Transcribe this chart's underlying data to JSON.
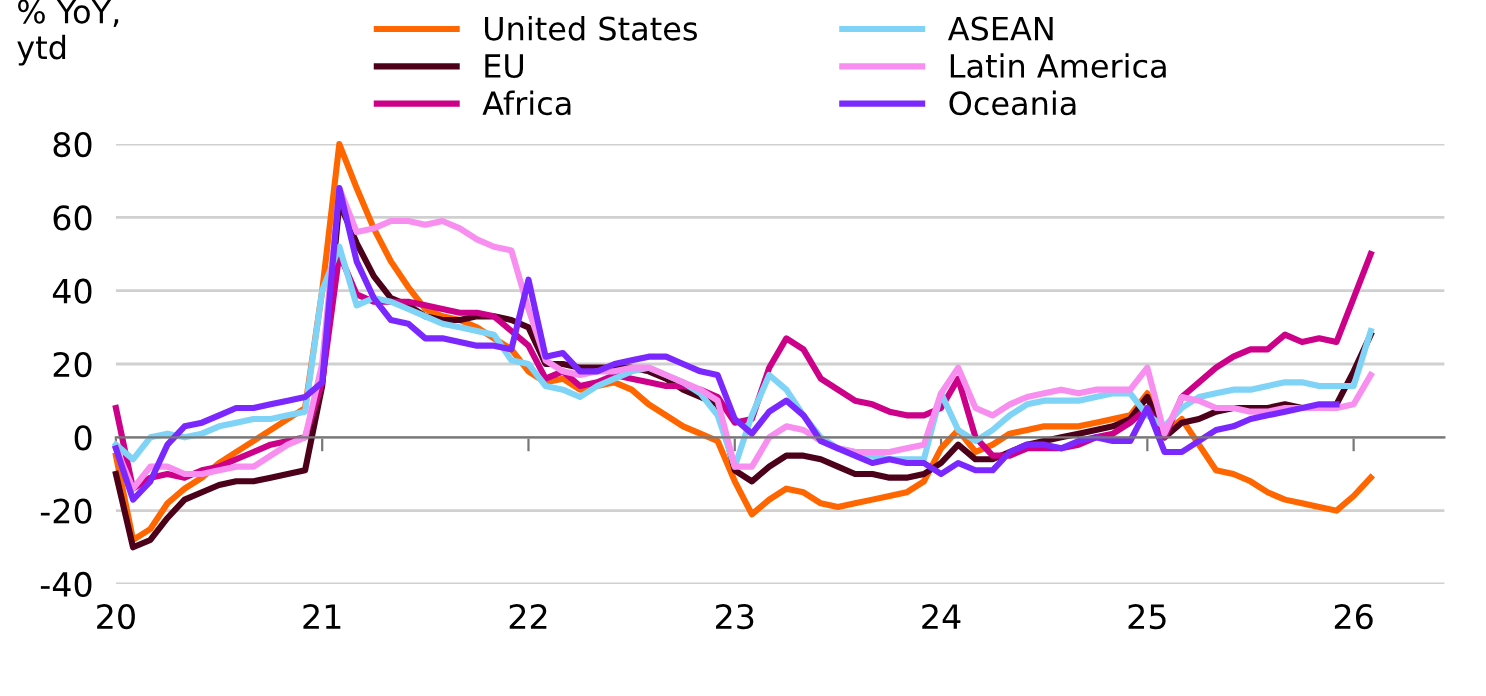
{
  "chart_data": {
    "type": "line",
    "ylabel": "% YoY,\nytd",
    "x": [
      20.0,
      20.083,
      20.167,
      20.25,
      20.333,
      20.417,
      20.5,
      20.583,
      20.667,
      20.75,
      20.833,
      20.917,
      21.0,
      21.083,
      21.167,
      21.25,
      21.333,
      21.417,
      21.5,
      21.583,
      21.667,
      21.75,
      21.833,
      21.917,
      22.0,
      22.083,
      22.167,
      22.25,
      22.333,
      22.417,
      22.5,
      22.583,
      22.667,
      22.75,
      22.833,
      22.917,
      23.0,
      23.083,
      23.167,
      23.25,
      23.333,
      23.417,
      23.5,
      23.583,
      23.667,
      23.75,
      23.833,
      23.917,
      24.0,
      24.083,
      24.167,
      24.25,
      24.333,
      24.417,
      24.5,
      24.583,
      24.667,
      24.75,
      24.833,
      24.917,
      25.0,
      25.083,
      25.167,
      25.25,
      25.333,
      25.417,
      25.5,
      25.583,
      25.667,
      25.75,
      25.833,
      25.917,
      26.0,
      26.083
    ],
    "series": [
      {
        "name": "United States",
        "color": "#ff6600",
        "values": [
          -5,
          -28,
          -25,
          -18,
          -14,
          -11,
          -7,
          -4,
          -1,
          2,
          5,
          8,
          40,
          80,
          68,
          57,
          48,
          41,
          35,
          33,
          32,
          30,
          27,
          24,
          18,
          15,
          16,
          13,
          14,
          15,
          13,
          9,
          6,
          3,
          1,
          -1,
          -12,
          -21,
          -17,
          -14,
          -15,
          -18,
          -19,
          -18,
          -17,
          -16,
          -15,
          -12,
          -3,
          2,
          -4,
          -2,
          1,
          2,
          3,
          3,
          3,
          4,
          5,
          6,
          12,
          1,
          5,
          -2,
          -9,
          -10,
          -12,
          -15,
          -17,
          -18,
          -19,
          -20,
          -16,
          -11
        ]
      },
      {
        "name": "EU",
        "color": "#4d0019",
        "values": [
          -10,
          -30,
          -28,
          -22,
          -17,
          -15,
          -13,
          -12,
          -12,
          -11,
          -10,
          -9,
          14,
          64,
          53,
          44,
          38,
          36,
          33,
          32,
          32,
          33,
          33,
          32,
          30,
          20,
          20,
          19,
          19,
          19,
          19,
          18,
          16,
          13,
          11,
          9,
          -9,
          -12,
          -8,
          -5,
          -5,
          -6,
          -8,
          -10,
          -10,
          -11,
          -11,
          -10,
          -7,
          -2,
          -6,
          -6,
          -4,
          -2,
          -1,
          0,
          1,
          2,
          3,
          5,
          11,
          0,
          4,
          5,
          7,
          8,
          8,
          8,
          9,
          8,
          8,
          9,
          18,
          28
        ]
      },
      {
        "name": "Africa",
        "color": "#cc0089",
        "values": [
          8,
          -14,
          -11,
          -10,
          -11,
          -9,
          -8,
          -6,
          -4,
          -2,
          -1,
          0,
          15,
          50,
          39,
          37,
          37,
          37,
          36,
          35,
          34,
          34,
          33,
          29,
          25,
          16,
          18,
          14,
          15,
          17,
          16,
          15,
          14,
          14,
          13,
          11,
          4,
          5,
          19,
          27,
          24,
          16,
          13,
          10,
          9,
          7,
          6,
          6,
          8,
          16,
          0,
          -5,
          -5,
          -3,
          -3,
          -3,
          -2,
          0,
          1,
          4,
          8,
          0,
          11,
          15,
          19,
          22,
          24,
          24,
          28,
          26,
          27,
          26,
          38,
          50
        ]
      },
      {
        "name": "ASEAN",
        "color": "#7fd3f7",
        "values": [
          -2,
          -6,
          0,
          1,
          0,
          1,
          3,
          4,
          5,
          5,
          6,
          7,
          40,
          52,
          36,
          38,
          37,
          35,
          33,
          31,
          30,
          29,
          28,
          21,
          20,
          14,
          13,
          11,
          14,
          16,
          18,
          19,
          17,
          15,
          12,
          6,
          -8,
          6,
          17,
          13,
          6,
          0,
          -3,
          -4,
          -5,
          -6,
          -6,
          -6,
          12,
          2,
          -1,
          2,
          6,
          9,
          10,
          10,
          10,
          11,
          12,
          12,
          6,
          3,
          8,
          11,
          12,
          13,
          13,
          14,
          15,
          15,
          14,
          14,
          14,
          29
        ]
      },
      {
        "name": "Latin America",
        "color": "#f78ef0",
        "values": [
          -3,
          -14,
          -8,
          -8,
          -10,
          -10,
          -9,
          -8,
          -8,
          -5,
          -2,
          0,
          20,
          68,
          56,
          57,
          59,
          59,
          58,
          59,
          57,
          54,
          52,
          51,
          35,
          21,
          18,
          17,
          18,
          18,
          19,
          19,
          17,
          15,
          13,
          10,
          -8,
          -8,
          0,
          3,
          2,
          -1,
          -3,
          -4,
          -4,
          -4,
          -3,
          -2,
          12,
          19,
          8,
          6,
          9,
          11,
          12,
          13,
          12,
          13,
          13,
          13,
          19,
          1,
          11,
          10,
          8,
          8,
          7,
          7,
          8,
          8,
          8,
          8,
          9,
          17
        ]
      },
      {
        "name": "Oceania",
        "color": "#7a28ff",
        "values": [
          -3,
          -17,
          -12,
          -2,
          3,
          4,
          6,
          8,
          8,
          9,
          10,
          11,
          15,
          68,
          48,
          38,
          32,
          31,
          27,
          27,
          26,
          25,
          25,
          24,
          43,
          22,
          23,
          18,
          18,
          20,
          21,
          22,
          22,
          20,
          18,
          17,
          5,
          1,
          7,
          10,
          6,
          -1,
          -3,
          -5,
          -7,
          -6,
          -7,
          -7,
          -10,
          -7,
          -9,
          -9,
          -4,
          -2,
          -2,
          -3,
          -1,
          0,
          -1,
          -1,
          8,
          -4,
          -4,
          -1,
          2,
          3,
          5,
          6,
          7,
          8,
          9,
          9,
          null,
          null
        ]
      }
    ],
    "xlim": [
      20,
      26.44
    ],
    "xticks": [
      20,
      21,
      22,
      23,
      24,
      25,
      26
    ],
    "ylim": [
      -40,
      80
    ],
    "yticks": [
      -40,
      -20,
      0,
      20,
      40,
      60,
      80
    ],
    "grid": "y",
    "legend": "top",
    "marker": "none",
    "line_style": "solid"
  }
}
